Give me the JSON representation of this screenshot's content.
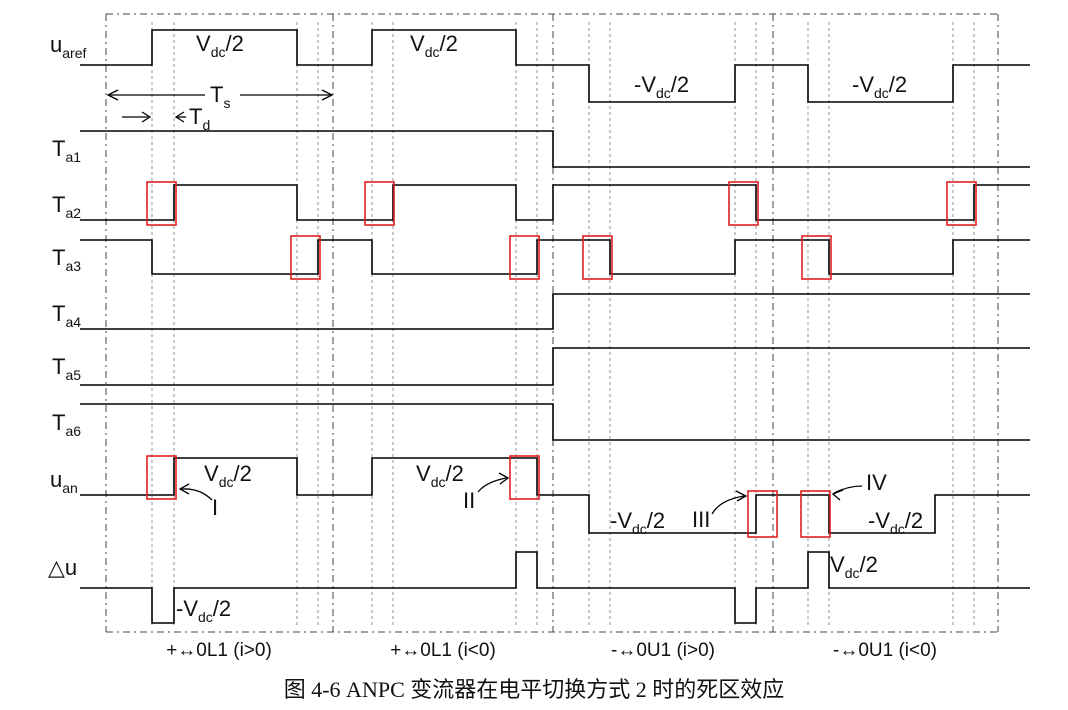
{
  "signals": {
    "uaref": {
      "main": "u",
      "sub": "aref"
    },
    "ta1": {
      "main": "T",
      "sub": "a1"
    },
    "ta2": {
      "main": "T",
      "sub": "a2"
    },
    "ta3": {
      "main": "T",
      "sub": "a3"
    },
    "ta4": {
      "main": "T",
      "sub": "a4"
    },
    "ta5": {
      "main": "T",
      "sub": "a5"
    },
    "ta6": {
      "main": "T",
      "sub": "a6"
    },
    "uan": {
      "main": "u",
      "sub": "an"
    },
    "du": {
      "main": "△u"
    }
  },
  "levels": {
    "pos_pre": "V",
    "pos_sub": "dc",
    "pos_post": "/2",
    "neg_pre": "-V",
    "neg_sub": "dc",
    "neg_post": "/2"
  },
  "timing": {
    "ts_main": "T",
    "ts_sub": "s",
    "td_main": "T",
    "td_sub": "d"
  },
  "markers": {
    "m1": "I",
    "m2": "II",
    "m3": "III",
    "m4": "IV"
  },
  "modes": [
    "+↔0L1 (i>0)",
    "+↔0L1 (i<0)",
    "-↔0U1 (i>0)",
    "-↔0U1 (i<0)"
  ],
  "caption": "图 4-6 ANPC 变流器在电平切换方式 2 时的死区效应"
}
